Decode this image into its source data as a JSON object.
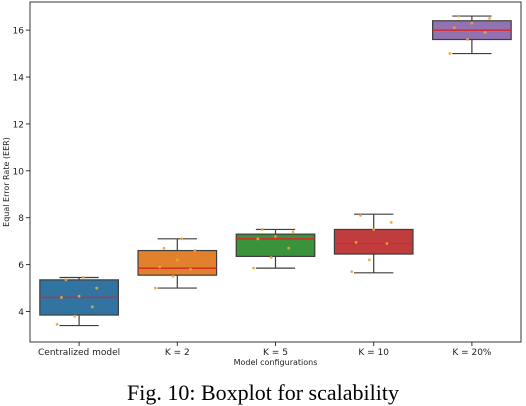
{
  "caption": "Fig. 10: Boxplot for scalability",
  "chart_data": {
    "type": "box",
    "title": "",
    "xlabel": "Model configurations",
    "ylabel": "Equal Error Rate (EER)",
    "ylim": [
      2.7,
      17.2
    ],
    "yticks": [
      4,
      6,
      8,
      10,
      12,
      14,
      16
    ],
    "grid": false,
    "categories": [
      "Centralized model",
      "K = 2",
      "K = 5",
      "K = 10",
      "K = 20%"
    ],
    "boxes": [
      {
        "label": "Centralized model",
        "color": "#3274a1",
        "whislo": 3.4,
        "q1": 3.85,
        "median": 4.6,
        "q3": 5.35,
        "whishi": 5.45,
        "points": [
          3.45,
          3.8,
          4.2,
          4.6,
          4.65,
          5.0,
          5.35,
          5.45
        ]
      },
      {
        "label": "K = 2",
        "color": "#e1812c",
        "whislo": 5.0,
        "q1": 5.55,
        "median": 5.85,
        "q3": 6.6,
        "whishi": 7.1,
        "points": [
          5.0,
          5.5,
          5.8,
          5.9,
          6.2,
          6.6,
          6.7,
          7.1
        ]
      },
      {
        "label": "K = 5",
        "color": "#3a923a",
        "whislo": 5.85,
        "q1": 6.35,
        "median": 7.1,
        "q3": 7.3,
        "whishi": 7.5,
        "points": [
          5.85,
          6.3,
          6.7,
          7.1,
          7.2,
          7.4,
          7.5
        ]
      },
      {
        "label": "K = 10",
        "color": "#c03d3e",
        "whislo": 5.65,
        "q1": 6.45,
        "median": 6.9,
        "q3": 7.5,
        "whishi": 8.15,
        "points": [
          5.7,
          6.2,
          6.9,
          6.95,
          7.5,
          7.8,
          8.1
        ]
      },
      {
        "label": "K = 20%",
        "color": "#9372b2",
        "whislo": 15.0,
        "q1": 15.6,
        "median": 16.0,
        "q3": 16.4,
        "whishi": 16.6,
        "points": [
          15.0,
          15.6,
          15.9,
          16.1,
          16.3,
          16.5,
          16.6
        ]
      }
    ],
    "median_color": "#d62728",
    "point_color": "#f2a33a"
  }
}
